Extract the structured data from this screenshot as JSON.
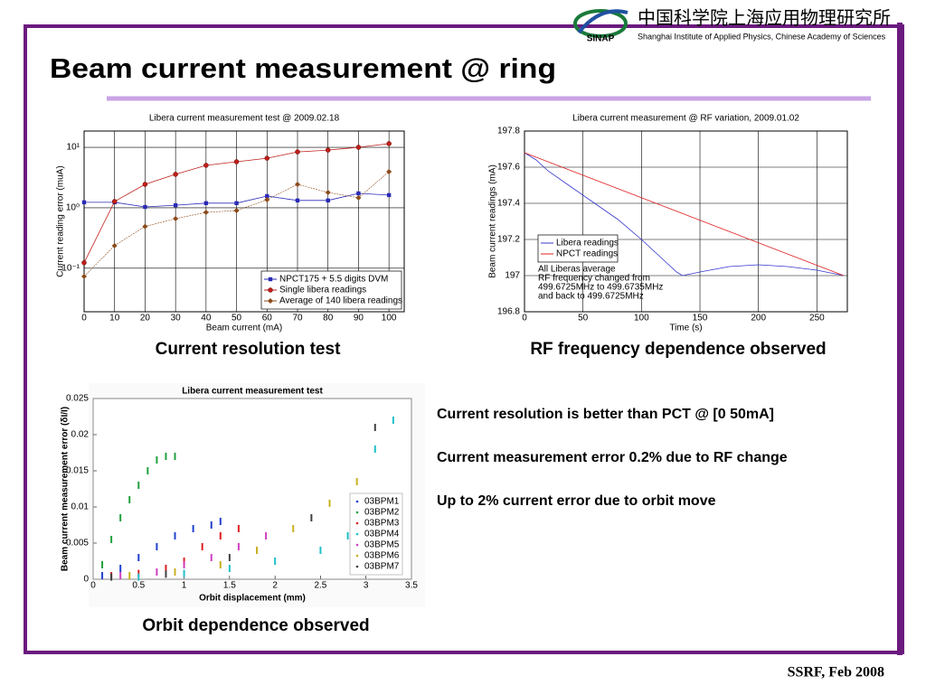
{
  "header": {
    "logo": "SINAP",
    "chinese": "中国科学院上海应用物理研究所",
    "english": "Shanghai Institute of Applied Physics, Chinese Academy of Sciences"
  },
  "title": "Beam current measurement @ ring",
  "captions": [
    "Current resolution test",
    "RF frequency dependence observed",
    "Orbit dependence observed"
  ],
  "bullets": [
    "Current resolution is better than PCT @ [0 50mA]",
    "Current measurement error 0.2% due to RF change",
    "Up to 2% current error due to orbit move"
  ],
  "footer": "SSRF, Feb 2008",
  "chart_data": [
    {
      "type": "line",
      "title": "Libera current measurement test @ 2009.02.18",
      "x_label": "Beam current (mA)",
      "y_label": "Current reading error (muA)",
      "log_y": true,
      "grid": true,
      "legend": "lower right",
      "x": [
        0,
        10,
        20,
        30,
        40,
        50,
        60,
        70,
        80,
        90,
        100
      ],
      "xlim": [
        0,
        105
      ],
      "xticks": [
        0,
        10,
        20,
        30,
        40,
        50,
        60,
        70,
        80,
        90,
        100
      ],
      "ylim": [
        0.019,
        18.6
      ],
      "yticks": [
        {
          "value": 0.1,
          "label": "10⁻¹"
        },
        {
          "value": 1,
          "label": "10⁰"
        },
        {
          "value": 10,
          "label": "10¹"
        }
      ],
      "series": [
        {
          "name": "NPCT175 + 5.5 digits DVM",
          "color": "#2a2ab8",
          "marker": "square",
          "values": [
            1.23,
            1.23,
            1.03,
            1.1,
            1.19,
            1.19,
            1.56,
            1.32,
            1.32,
            1.73,
            1.62
          ]
        },
        {
          "name": "Single libera readings",
          "color": "#c0201a",
          "marker": "circle",
          "values": [
            0.123,
            1.27,
            2.44,
            3.57,
            5.03,
            5.77,
            6.6,
            8.4,
            9.0,
            10.0,
            11.5
          ]
        },
        {
          "name": "Average of 140 libera readings",
          "color": "#8b4a1b",
          "marker": "diamond",
          "values": [
            0.073,
            0.236,
            0.49,
            0.66,
            0.84,
            0.9,
            1.36,
            2.44,
            1.79,
            1.46,
            3.95
          ]
        }
      ]
    },
    {
      "type": "line",
      "title": "Libera current measurement @ RF variation, 2009.01.02",
      "x_label": "Time (s)",
      "y_label": "Beam current readings (mA)",
      "grid": true,
      "legend": "lower left",
      "annotation": [
        "All Liberas average",
        "RF frequency changed from",
        "499.6725MHz to 499.6735MHz",
        "and back to 499.6725MHz"
      ],
      "xlim": [
        0,
        276
      ],
      "xticks": [
        0,
        50,
        100,
        150,
        200,
        250
      ],
      "ylim": [
        196.8,
        197.8
      ],
      "yticks": [
        196.8,
        197,
        197.2,
        197.4,
        197.6,
        197.8
      ],
      "series": [
        {
          "name": "Libera readings",
          "color": "#3535d0",
          "x": [
            0,
            10,
            20,
            40,
            60,
            80,
            100,
            120,
            130,
            135,
            150,
            175,
            200,
            225,
            250,
            273
          ],
          "values": [
            197.68,
            197.64,
            197.58,
            197.49,
            197.4,
            197.31,
            197.2,
            197.08,
            197.02,
            197.0,
            197.02,
            197.05,
            197.06,
            197.05,
            197.03,
            197.0
          ]
        },
        {
          "name": "NPCT readings",
          "color": "#e02020",
          "x": [
            0,
            273
          ],
          "values": [
            197.68,
            197.0
          ]
        }
      ]
    },
    {
      "type": "scatter",
      "title": "Libera current measurement test",
      "x_label": "Orbit displacement (mm)",
      "y_label": "Beam current measurement error (δI/I)",
      "grid": false,
      "legend": "right",
      "xlim": [
        0,
        3.5
      ],
      "xticks": [
        0,
        0.5,
        1,
        1.5,
        2,
        2.5,
        3,
        3.5
      ],
      "ylim": [
        0,
        0.025
      ],
      "yticks": [
        0,
        0.005,
        0.01,
        0.015,
        0.02,
        0.025
      ],
      "series": [
        {
          "name": "03BPM1",
          "color": "#2040d0",
          "x": [
            0.1,
            0.3,
            0.5,
            0.7,
            0.9,
            1.1,
            1.3,
            1.4
          ],
          "values": [
            0.0005,
            0.0015,
            0.003,
            0.0045,
            0.006,
            0.007,
            0.0075,
            0.008
          ]
        },
        {
          "name": "03BPM2",
          "color": "#20a040",
          "x": [
            0.1,
            0.2,
            0.3,
            0.4,
            0.5,
            0.6,
            0.7,
            0.8,
            0.9
          ],
          "values": [
            0.002,
            0.0055,
            0.0085,
            0.011,
            0.013,
            0.015,
            0.0165,
            0.017,
            0.017
          ]
        },
        {
          "name": "03BPM3",
          "color": "#e02020",
          "x": [
            0.2,
            0.5,
            0.8,
            1.0,
            1.2,
            1.4,
            1.6
          ],
          "values": [
            0.0005,
            0.0008,
            0.0015,
            0.0025,
            0.0045,
            0.006,
            0.007
          ]
        },
        {
          "name": "03BPM4",
          "color": "#20c0c8",
          "x": [
            0.5,
            1.0,
            1.5,
            2.0,
            2.5,
            2.8,
            3.1,
            3.3
          ],
          "values": [
            0.0003,
            0.0008,
            0.0015,
            0.0025,
            0.004,
            0.006,
            0.018,
            0.022
          ]
        },
        {
          "name": "03BPM5",
          "color": "#d040c0",
          "x": [
            0.3,
            0.7,
            1.0,
            1.3,
            1.6,
            1.9
          ],
          "values": [
            0.0005,
            0.001,
            0.002,
            0.003,
            0.0045,
            0.006
          ]
        },
        {
          "name": "03BPM6",
          "color": "#c8b020",
          "x": [
            0.4,
            0.9,
            1.4,
            1.8,
            2.2,
            2.6,
            2.9
          ],
          "values": [
            0.0005,
            0.001,
            0.002,
            0.004,
            0.007,
            0.0105,
            0.0135
          ]
        },
        {
          "name": "03BPM7",
          "color": "#404040",
          "x": [
            0.2,
            0.8,
            1.5,
            2.4,
            3.1
          ],
          "values": [
            0.0003,
            0.0007,
            0.003,
            0.0085,
            0.021
          ]
        }
      ]
    }
  ]
}
